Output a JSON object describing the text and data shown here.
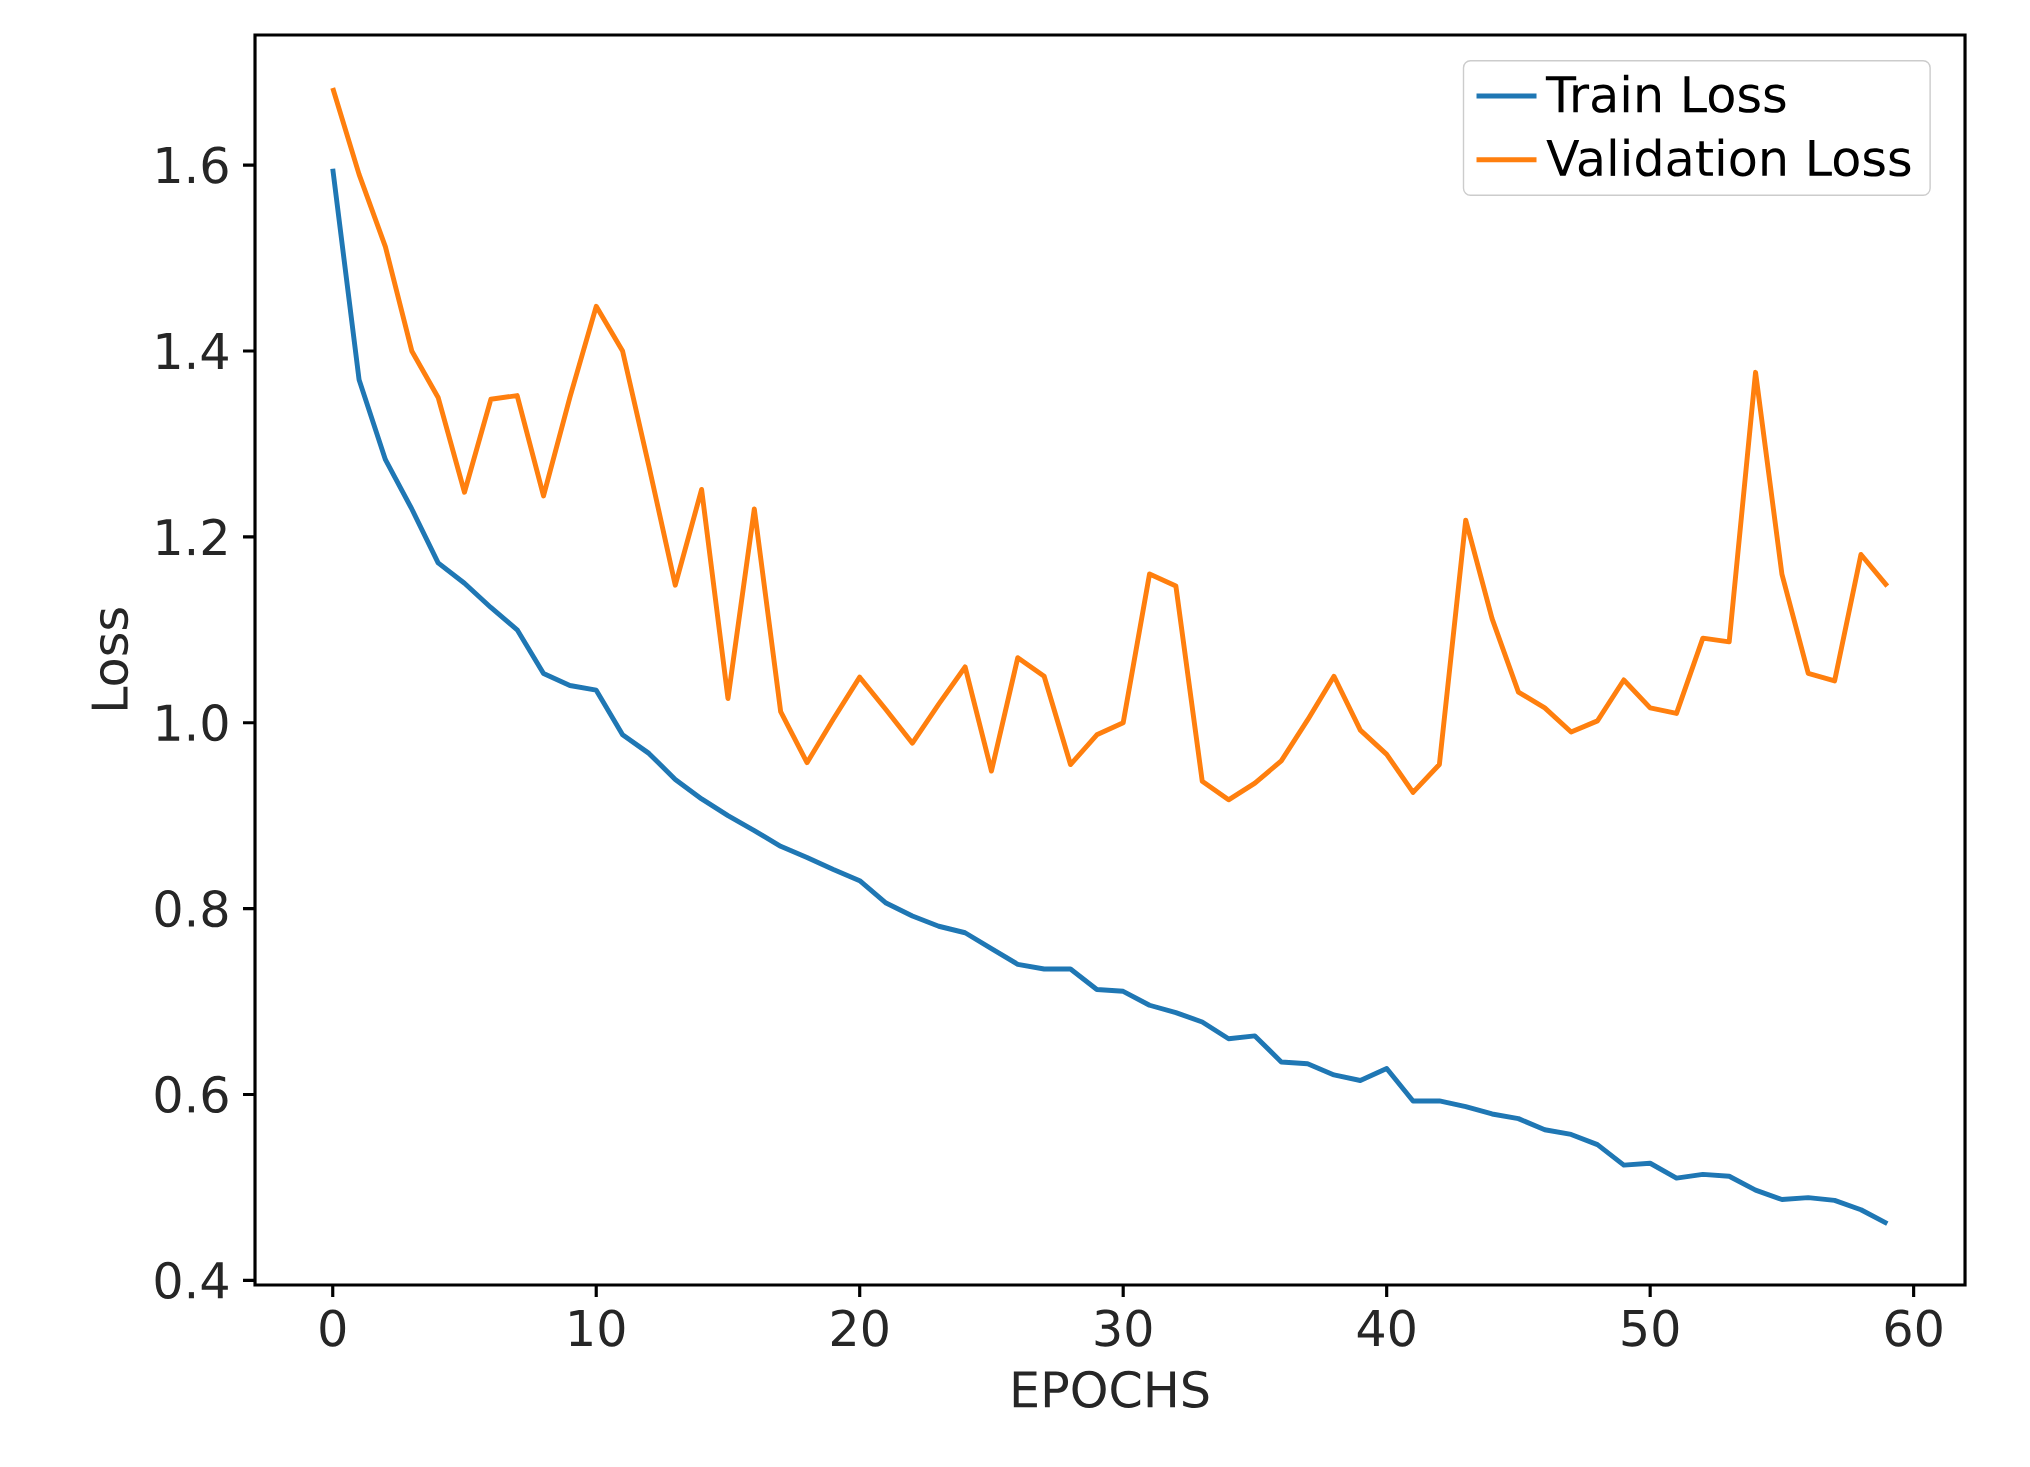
{
  "chart_data": {
    "type": "line",
    "xlabel": "EPOCHS",
    "ylabel": "Loss",
    "x": [
      0,
      1,
      2,
      3,
      4,
      5,
      6,
      7,
      8,
      9,
      10,
      11,
      12,
      13,
      14,
      15,
      16,
      17,
      18,
      19,
      20,
      21,
      22,
      23,
      24,
      25,
      26,
      27,
      28,
      29,
      30,
      31,
      32,
      33,
      34,
      35,
      36,
      37,
      38,
      39,
      40,
      41,
      42,
      43,
      44,
      45,
      46,
      47,
      48,
      49,
      50,
      51,
      52,
      53,
      54,
      55,
      56,
      57,
      58,
      59
    ],
    "series": [
      {
        "name": "Train Loss",
        "color": "#1f77b4",
        "values": [
          1.596,
          1.369,
          1.283,
          1.23,
          1.172,
          1.15,
          1.124,
          1.1,
          1.053,
          1.04,
          1.035,
          0.987,
          0.967,
          0.939,
          0.918,
          0.9,
          0.884,
          0.867,
          0.855,
          0.842,
          0.83,
          0.806,
          0.792,
          0.781,
          0.774,
          0.757,
          0.74,
          0.735,
          0.735,
          0.713,
          0.711,
          0.696,
          0.688,
          0.678,
          0.66,
          0.663,
          0.635,
          0.633,
          0.621,
          0.615,
          0.628,
          0.593,
          0.593,
          0.587,
          0.579,
          0.574,
          0.562,
          0.557,
          0.546,
          0.524,
          0.526,
          0.51,
          0.514,
          0.512,
          0.497,
          0.487,
          0.489,
          0.486,
          0.476,
          0.461
        ]
      },
      {
        "name": "Validation Loss",
        "color": "#ff7f0e",
        "values": [
          1.683,
          1.59,
          1.512,
          1.4,
          1.35,
          1.248,
          1.348,
          1.352,
          1.244,
          1.35,
          1.448,
          1.4,
          1.276,
          1.148,
          1.251,
          1.026,
          1.23,
          1.012,
          0.957,
          1.004,
          1.049,
          1.014,
          0.978,
          1.02,
          1.06,
          0.948,
          1.07,
          1.05,
          0.955,
          0.987,
          1.0,
          1.16,
          1.147,
          0.937,
          0.917,
          0.935,
          0.959,
          1.003,
          1.05,
          0.992,
          0.966,
          0.925,
          0.955,
          1.218,
          1.112,
          1.033,
          1.016,
          0.99,
          1.002,
          1.046,
          1.016,
          1.01,
          1.091,
          1.087,
          1.377,
          1.16,
          1.053,
          1.045,
          1.181,
          1.147
        ]
      }
    ],
    "xlim": [
      -2.95,
      61.95
    ],
    "ylim": [
      0.395,
      1.74
    ],
    "xticks": [
      0,
      10,
      20,
      30,
      40,
      50,
      60
    ],
    "yticks": [
      {
        "value": 0.4,
        "label": "0.4"
      },
      {
        "value": 0.6,
        "label": "0.6"
      },
      {
        "value": 0.8,
        "label": "0.8"
      },
      {
        "value": 1.0,
        "label": "1.0"
      },
      {
        "value": 1.2,
        "label": "1.2"
      },
      {
        "value": 1.4,
        "label": "1.4"
      },
      {
        "value": 1.6,
        "label": "1.6"
      }
    ],
    "legend": "top right",
    "grid": false,
    "marker": "none",
    "line_style": "solid"
  }
}
